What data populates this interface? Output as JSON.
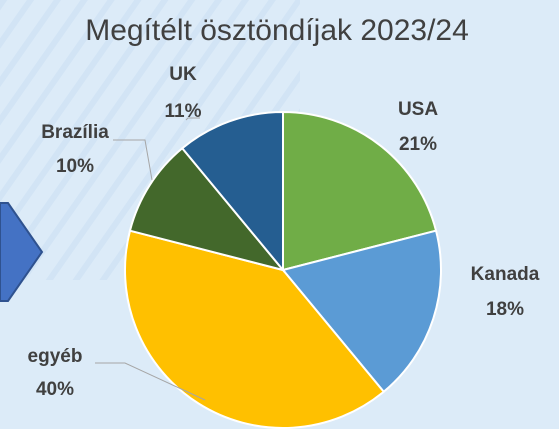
{
  "chart_data": {
    "type": "pie",
    "title": "Megítélt ösztöndíjak 2023/24",
    "categories": [
      "USA",
      "Kanada",
      "egyéb",
      "Brazília",
      "UK"
    ],
    "values": [
      21,
      18,
      40,
      10,
      11
    ],
    "value_labels": [
      "21%",
      "18%",
      "40%",
      "10%",
      "11%"
    ],
    "colors": [
      "#70ad47",
      "#5b9bd5",
      "#ffc000",
      "#43682b",
      "#255e91"
    ]
  }
}
